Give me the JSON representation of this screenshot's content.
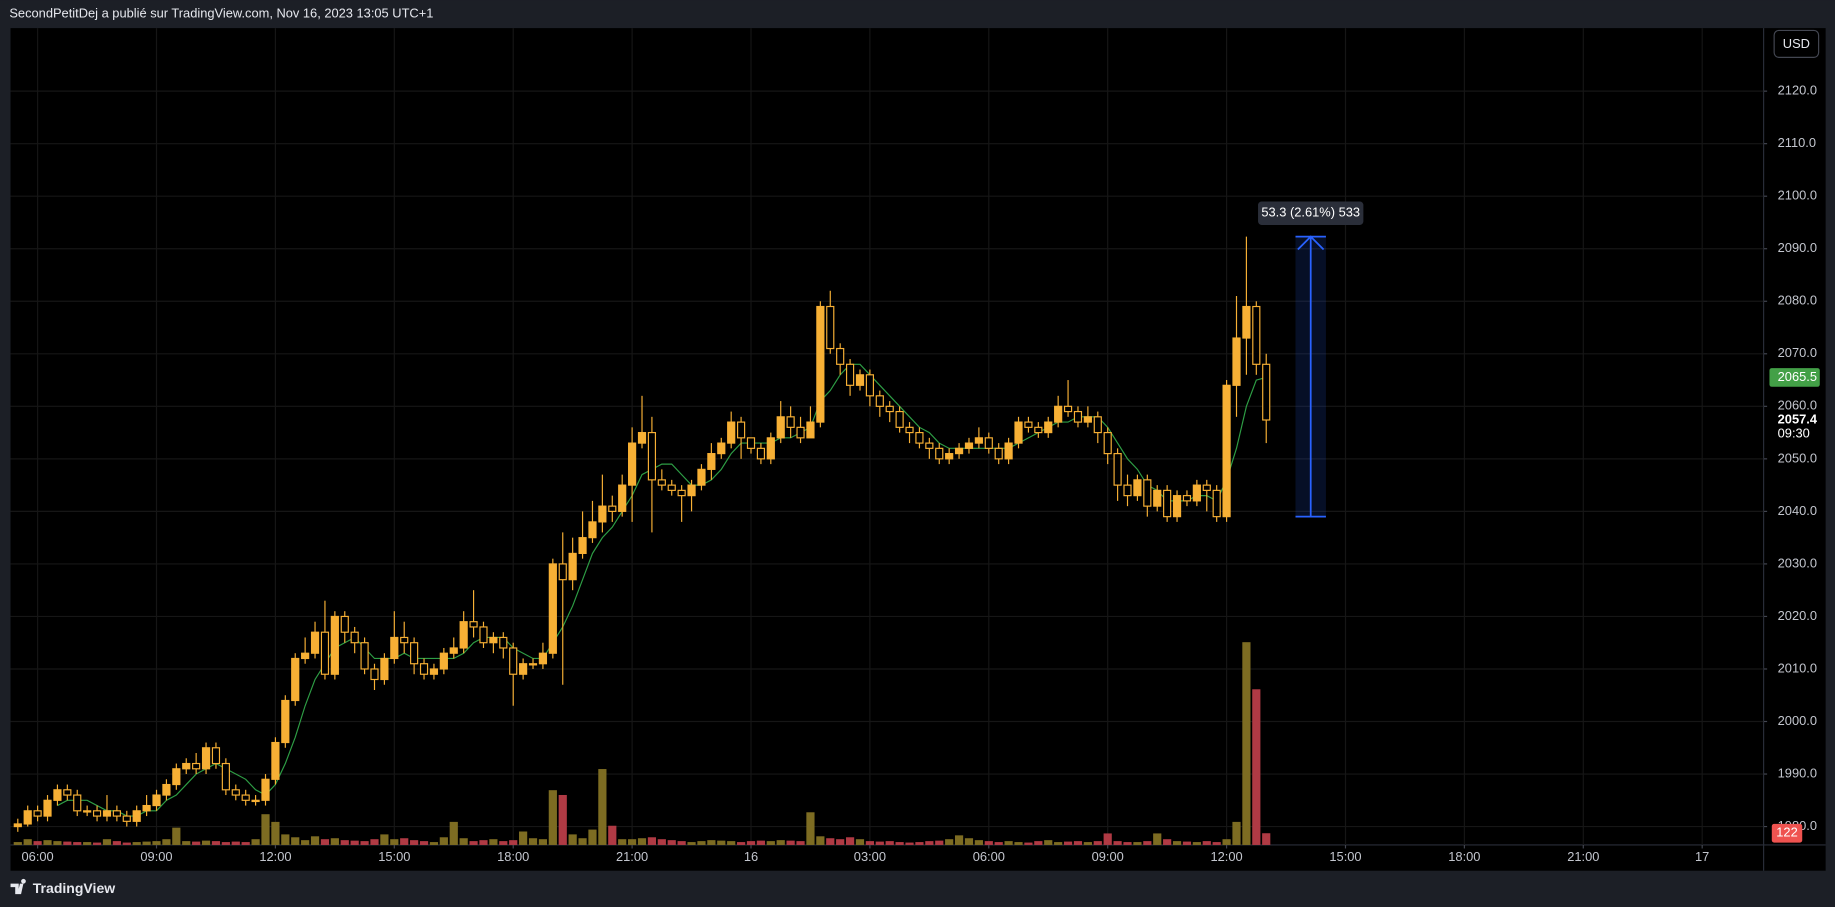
{
  "header": {
    "text": "SecondPetitDej a publié sur TradingView.com, Nov 16, 2023 13:05 UTC+1"
  },
  "footer": {
    "brand": "TradingView"
  },
  "chart_data": {
    "type": "candlestick",
    "currency": "USD",
    "grid": true,
    "up_color": "#f7b035",
    "down_color": "#f7b035",
    "x": [
      "15 05:30",
      "15 05:45",
      "15 06:00",
      "15 06:15",
      "15 06:30",
      "15 06:45",
      "15 07:00",
      "15 07:15",
      "15 07:30",
      "15 07:45",
      "15 08:00",
      "15 08:15",
      "15 08:30",
      "15 08:45",
      "15 09:00",
      "15 09:15",
      "15 09:30",
      "15 09:45",
      "15 10:00",
      "15 10:15",
      "15 10:30",
      "15 10:45",
      "15 11:00",
      "15 11:15",
      "15 11:30",
      "15 11:45",
      "15 12:00",
      "15 12:15",
      "15 12:30",
      "15 12:45",
      "15 13:00",
      "15 13:15",
      "15 13:30",
      "15 13:45",
      "15 14:00",
      "15 14:15",
      "15 14:30",
      "15 14:45",
      "15 15:00",
      "15 15:15",
      "15 15:30",
      "15 15:45",
      "15 16:00",
      "15 16:15",
      "15 16:30",
      "15 16:45",
      "15 17:00",
      "15 17:15",
      "15 17:30",
      "15 17:45",
      "15 18:00",
      "15 18:15",
      "15 18:30",
      "15 18:45",
      "15 19:00",
      "15 19:15",
      "15 19:30",
      "15 19:45",
      "15 20:00",
      "15 20:15",
      "15 20:30",
      "15 20:45",
      "15 21:00",
      "15 21:15",
      "15 21:30",
      "15 21:45",
      "15 22:00",
      "15 22:15",
      "15 22:30",
      "15 22:45",
      "15 23:00",
      "15 23:15",
      "15 23:30",
      "15 23:45",
      "16 00:00",
      "16 00:15",
      "16 00:30",
      "16 00:45",
      "16 01:00",
      "16 01:15",
      "16 01:30",
      "16 01:45",
      "16 02:00",
      "16 02:15",
      "16 02:30",
      "16 02:45",
      "16 03:00",
      "16 03:15",
      "16 03:30",
      "16 03:45",
      "16 04:00",
      "16 04:15",
      "16 04:30",
      "16 04:45",
      "16 05:00",
      "16 05:15",
      "16 05:30",
      "16 05:45",
      "16 06:00",
      "16 06:15",
      "16 06:30",
      "16 06:45",
      "16 07:00",
      "16 07:15",
      "16 07:30",
      "16 07:45",
      "16 08:00",
      "16 08:15",
      "16 08:30",
      "16 08:45",
      "16 09:00",
      "16 09:15",
      "16 09:30",
      "16 09:45",
      "16 10:00",
      "16 10:15",
      "16 10:30",
      "16 10:45",
      "16 11:00",
      "16 11:15",
      "16 11:30",
      "16 11:45",
      "16 12:00",
      "16 12:15",
      "16 12:30",
      "16 12:45",
      "16 13:00"
    ],
    "open": [
      1980,
      1980.5,
      1983,
      1982,
      1985,
      1987,
      1986,
      1983,
      1983,
      1982,
      1983,
      1982,
      1981,
      1983,
      1984,
      1986,
      1988,
      1991,
      1992,
      1991,
      1995,
      1992,
      1987,
      1986,
      1985,
      1985,
      1989,
      1996,
      2004,
      2012,
      2013,
      2017,
      2009,
      2020,
      2017,
      2015,
      2010,
      2008,
      2012,
      2016,
      2015,
      2011,
      2009,
      2010,
      2013,
      2014,
      2019,
      2018,
      2015,
      2016,
      2014,
      2009,
      2011,
      2011,
      2013,
      2030,
      2027,
      2032,
      2035,
      2038,
      2041,
      2040,
      2045,
      2053,
      2055,
      2046,
      2045,
      2044,
      2043,
      2045,
      2048,
      2051,
      2053,
      2057,
      2054,
      2052,
      2050,
      2054,
      2058,
      2056,
      2054,
      2057,
      2079,
      2071,
      2068,
      2064,
      2066,
      2062,
      2060,
      2059,
      2056,
      2055,
      2053,
      2052,
      2050,
      2051,
      2052,
      2053,
      2054,
      2052,
      2050,
      2053,
      2057,
      2056,
      2055,
      2057,
      2060,
      2059,
      2057,
      2058,
      2055,
      2051,
      2045,
      2043,
      2046,
      2041,
      2044,
      2039,
      2043,
      2042,
      2045,
      2044,
      2039,
      2064,
      2073,
      2079,
      2068
    ],
    "high": [
      1981.5,
      1984,
      1984,
      1986,
      1988,
      1988,
      1987,
      1984,
      1984,
      1986,
      1984,
      1983,
      1984,
      1986,
      1987,
      1989,
      1992,
      1993,
      1994,
      1996,
      1996,
      1993,
      1988,
      1987,
      1986,
      1990,
      1997,
      2005,
      2013,
      2016,
      2019,
      2023,
      2021,
      2021,
      2018,
      2016,
      2011,
      2013,
      2021,
      2019,
      2016,
      2012,
      2011,
      2014,
      2016,
      2021,
      2025,
      2019,
      2017,
      2017,
      2015,
      2012,
      2012,
      2015,
      2031,
      2036,
      2035,
      2040,
      2042,
      2047,
      2043,
      2047,
      2056,
      2062,
      2058,
      2048,
      2046,
      2045,
      2046,
      2049,
      2053,
      2054,
      2059,
      2058,
      2054,
      2053,
      2055,
      2061,
      2060,
      2058,
      2060,
      2080,
      2082,
      2072,
      2069,
      2067,
      2067,
      2063,
      2061,
      2060,
      2057,
      2056,
      2054,
      2053,
      2052,
      2053,
      2054,
      2056,
      2055,
      2053,
      2054,
      2058,
      2058,
      2057,
      2058,
      2062,
      2065,
      2060,
      2060,
      2059,
      2056,
      2052,
      2047,
      2047,
      2047,
      2045,
      2045,
      2044,
      2044,
      2046,
      2046,
      2045,
      2065,
      2081,
      2092.3,
      2080,
      2070
    ],
    "low": [
      1979,
      1980,
      1981,
      1981,
      1984,
      1985,
      1982,
      1982,
      1981,
      1981,
      1981,
      1980,
      1980,
      1982,
      1983,
      1985,
      1987,
      1990,
      1990,
      1990,
      1991,
      1986,
      1985,
      1984,
      1984,
      1984,
      1988,
      1995,
      2003,
      2011,
      2012,
      2008,
      2008,
      2015,
      2013,
      2009,
      2006,
      2007,
      2011,
      2013,
      2009,
      2008,
      2008,
      2009,
      2012,
      2013,
      2016,
      2014,
      2013,
      2012,
      2003,
      2008,
      2010,
      2010,
      2012,
      2007,
      2025,
      2031,
      2034,
      2036,
      2038,
      2039,
      2038,
      2052,
      2036,
      2044,
      2043,
      2038,
      2040,
      2044,
      2046,
      2050,
      2052,
      2050,
      2051,
      2049,
      2049,
      2053,
      2054,
      2053,
      2054,
      2056,
      2070,
      2066,
      2062,
      2063,
      2060,
      2058,
      2057,
      2055,
      2053,
      2052,
      2050,
      2049,
      2049,
      2050,
      2051,
      2052,
      2051,
      2049,
      2049,
      2052,
      2055,
      2054,
      2054,
      2056,
      2058,
      2056,
      2056,
      2053,
      2049,
      2042,
      2041,
      2042,
      2039,
      2040,
      2038,
      2038,
      2041,
      2041,
      2040,
      2038,
      2038,
      2058,
      2066,
      2066,
      2053
    ],
    "close": [
      1980.5,
      1983,
      1982,
      1985,
      1987,
      1986,
      1983,
      1983,
      1982,
      1983,
      1982,
      1981,
      1983,
      1984,
      1986,
      1988,
      1991,
      1992,
      1991,
      1995,
      1992,
      1987,
      1986,
      1985,
      1985,
      1989,
      1996,
      2004,
      2012,
      2013,
      2017,
      2009,
      2020,
      2017,
      2015,
      2010,
      2008,
      2012,
      2016,
      2015,
      2011,
      2009,
      2010,
      2013,
      2014,
      2019,
      2018,
      2015,
      2016,
      2014,
      2009,
      2011,
      2011,
      2013,
      2030,
      2027,
      2032,
      2035,
      2038,
      2041,
      2040,
      2045,
      2053,
      2055,
      2046,
      2045,
      2044,
      2043,
      2045,
      2048,
      2051,
      2053,
      2057,
      2054,
      2052,
      2050,
      2054,
      2058,
      2056,
      2054,
      2057,
      2079,
      2071,
      2068,
      2064,
      2066,
      2062,
      2060,
      2059,
      2056,
      2055,
      2053,
      2052,
      2050,
      2051,
      2052,
      2053,
      2054,
      2052,
      2050,
      2053,
      2057,
      2056,
      2055,
      2057,
      2060,
      2059,
      2057,
      2058,
      2055,
      2051,
      2045,
      2043,
      2046,
      2041,
      2044,
      2039,
      2043,
      2042,
      2045,
      2044,
      2039,
      2064,
      2073,
      2079,
      2068,
      2057.4
    ],
    "countdown": "09:30",
    "ma": {
      "color": "#2e9e45",
      "values": [
        null,
        null,
        null,
        null,
        1984,
        1985,
        1985,
        1985,
        1984,
        1983,
        1983,
        1982,
        1982,
        1983,
        1983,
        1985,
        1986,
        1988,
        1990,
        1991,
        1992,
        1991,
        1990,
        1989,
        1987,
        1986,
        1988,
        1992,
        1997,
        2003,
        2008,
        2011,
        2014,
        2015,
        2016,
        2014,
        2012,
        2012,
        2012,
        2013,
        2012,
        2012,
        2012,
        2012,
        2012,
        2013,
        2015,
        2016,
        2016,
        2016,
        2014,
        2013,
        2012,
        2012,
        2015,
        2018,
        2022,
        2027,
        2032,
        2035,
        2037,
        2040,
        2043,
        2047,
        2048,
        2049,
        2049,
        2047,
        2045,
        2045,
        2046,
        2048,
        2051,
        2053,
        2053,
        2053,
        2053,
        2054,
        2054,
        2055,
        2056,
        2061,
        2063,
        2066,
        2068,
        2068,
        2066,
        2064,
        2062,
        2060,
        2058,
        2056,
        2055,
        2053,
        2052,
        2052,
        2052,
        2052,
        2052,
        2052,
        2052,
        2053,
        2054,
        2055,
        2056,
        2057,
        2057,
        2058,
        2058,
        2058,
        2056,
        2053,
        2050,
        2048,
        2045,
        2044,
        2042,
        2042,
        2042,
        2043,
        2043,
        2042,
        2046,
        2052,
        2060,
        2065,
        2065.5
      ]
    },
    "volume": {
      "up_color": "#7d6c22",
      "down_color": "#b03a44",
      "values": [
        30,
        60,
        40,
        50,
        40,
        35,
        30,
        30,
        25,
        60,
        40,
        25,
        30,
        35,
        40,
        60,
        180,
        40,
        35,
        45,
        40,
        30,
        35,
        30,
        60,
        320,
        240,
        110,
        80,
        50,
        90,
        60,
        70,
        50,
        45,
        40,
        60,
        110,
        60,
        70,
        50,
        40,
        30,
        80,
        240,
        70,
        40,
        50,
        60,
        40,
        50,
        140,
        70,
        60,
        570,
        520,
        110,
        70,
        160,
        790,
        200,
        60,
        60,
        70,
        80,
        60,
        50,
        40,
        30,
        40,
        50,
        45,
        40,
        30,
        40,
        45,
        40,
        50,
        45,
        40,
        340,
        90,
        70,
        60,
        80,
        60,
        40,
        35,
        40,
        30,
        25,
        30,
        40,
        45,
        60,
        100,
        70,
        50,
        40,
        30,
        40,
        30,
        25,
        40,
        50,
        30,
        35,
        40,
        30,
        40,
        120,
        40,
        30,
        30,
        40,
        120,
        60,
        40,
        35,
        30,
        40,
        30,
        60,
        240,
        2110,
        1620,
        122
      ]
    },
    "xlim": [
      "15 05:19",
      "17 01:33"
    ],
    "xticks": [
      {
        "value": "15 06:00",
        "label": "06:00"
      },
      {
        "value": "15 09:00",
        "label": "09:00"
      },
      {
        "value": "15 12:00",
        "label": "12:00"
      },
      {
        "value": "15 15:00",
        "label": "15:00"
      },
      {
        "value": "15 18:00",
        "label": "18:00"
      },
      {
        "value": "15 21:00",
        "label": "21:00"
      },
      {
        "value": "16 00:00",
        "label": "16"
      },
      {
        "value": "16 03:00",
        "label": "03:00"
      },
      {
        "value": "16 06:00",
        "label": "06:00"
      },
      {
        "value": "16 09:00",
        "label": "09:00"
      },
      {
        "value": "16 12:00",
        "label": "12:00"
      },
      {
        "value": "16 15:00",
        "label": "15:00"
      },
      {
        "value": "16 18:00",
        "label": "18:00"
      },
      {
        "value": "16 21:00",
        "label": "21:00"
      },
      {
        "value": "17 00:00",
        "label": "17"
      }
    ],
    "ylim": [
      1976.5,
      2132
    ],
    "yticks": [
      {
        "value": 1980,
        "label": "1980.0"
      },
      {
        "value": 1990,
        "label": "1990.0"
      },
      {
        "value": 2000,
        "label": "2000.0"
      },
      {
        "value": 2010,
        "label": "2010.0"
      },
      {
        "value": 2020,
        "label": "2020.0"
      },
      {
        "value": 2030,
        "label": "2030.0"
      },
      {
        "value": 2040,
        "label": "2040.0"
      },
      {
        "value": 2050,
        "label": "2050.0"
      },
      {
        "value": 2060,
        "label": "2060.0"
      },
      {
        "value": 2070,
        "label": "2070.0"
      },
      {
        "value": 2080,
        "label": "2080.0"
      },
      {
        "value": 2090,
        "label": "2090.0"
      },
      {
        "value": 2100,
        "label": "2100.0"
      },
      {
        "value": 2110,
        "label": "2110.0"
      },
      {
        "value": 2120,
        "label": "2120.0"
      }
    ],
    "y2lim": [
      0,
      8500
    ],
    "measure": {
      "label": "53.3 (2.61%) 533",
      "from": 2039,
      "to": 2092.3,
      "color": "#2962ff"
    }
  }
}
